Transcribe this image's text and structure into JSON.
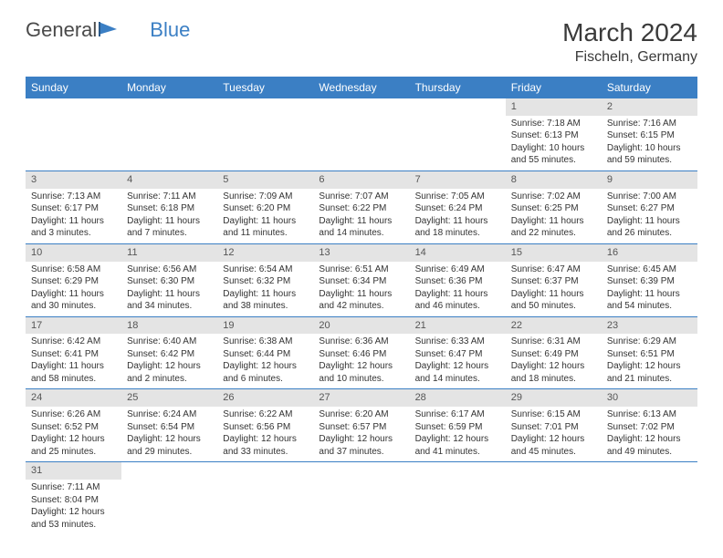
{
  "logo": {
    "text1": "General",
    "text2": "Blue"
  },
  "title": "March 2024",
  "location": "Fischeln, Germany",
  "colors": {
    "header_bg": "#3b7fc4",
    "header_text": "#ffffff",
    "daynum_bg": "#e4e4e4",
    "border": "#3b7fc4",
    "body_bg": "#ffffff",
    "text": "#333333"
  },
  "weekdays": [
    "Sunday",
    "Monday",
    "Tuesday",
    "Wednesday",
    "Thursday",
    "Friday",
    "Saturday"
  ],
  "weeks": [
    [
      null,
      null,
      null,
      null,
      null,
      {
        "n": "1",
        "sr": "Sunrise: 7:18 AM",
        "ss": "Sunset: 6:13 PM",
        "d1": "Daylight: 10 hours",
        "d2": "and 55 minutes."
      },
      {
        "n": "2",
        "sr": "Sunrise: 7:16 AM",
        "ss": "Sunset: 6:15 PM",
        "d1": "Daylight: 10 hours",
        "d2": "and 59 minutes."
      }
    ],
    [
      {
        "n": "3",
        "sr": "Sunrise: 7:13 AM",
        "ss": "Sunset: 6:17 PM",
        "d1": "Daylight: 11 hours",
        "d2": "and 3 minutes."
      },
      {
        "n": "4",
        "sr": "Sunrise: 7:11 AM",
        "ss": "Sunset: 6:18 PM",
        "d1": "Daylight: 11 hours",
        "d2": "and 7 minutes."
      },
      {
        "n": "5",
        "sr": "Sunrise: 7:09 AM",
        "ss": "Sunset: 6:20 PM",
        "d1": "Daylight: 11 hours",
        "d2": "and 11 minutes."
      },
      {
        "n": "6",
        "sr": "Sunrise: 7:07 AM",
        "ss": "Sunset: 6:22 PM",
        "d1": "Daylight: 11 hours",
        "d2": "and 14 minutes."
      },
      {
        "n": "7",
        "sr": "Sunrise: 7:05 AM",
        "ss": "Sunset: 6:24 PM",
        "d1": "Daylight: 11 hours",
        "d2": "and 18 minutes."
      },
      {
        "n": "8",
        "sr": "Sunrise: 7:02 AM",
        "ss": "Sunset: 6:25 PM",
        "d1": "Daylight: 11 hours",
        "d2": "and 22 minutes."
      },
      {
        "n": "9",
        "sr": "Sunrise: 7:00 AM",
        "ss": "Sunset: 6:27 PM",
        "d1": "Daylight: 11 hours",
        "d2": "and 26 minutes."
      }
    ],
    [
      {
        "n": "10",
        "sr": "Sunrise: 6:58 AM",
        "ss": "Sunset: 6:29 PM",
        "d1": "Daylight: 11 hours",
        "d2": "and 30 minutes."
      },
      {
        "n": "11",
        "sr": "Sunrise: 6:56 AM",
        "ss": "Sunset: 6:30 PM",
        "d1": "Daylight: 11 hours",
        "d2": "and 34 minutes."
      },
      {
        "n": "12",
        "sr": "Sunrise: 6:54 AM",
        "ss": "Sunset: 6:32 PM",
        "d1": "Daylight: 11 hours",
        "d2": "and 38 minutes."
      },
      {
        "n": "13",
        "sr": "Sunrise: 6:51 AM",
        "ss": "Sunset: 6:34 PM",
        "d1": "Daylight: 11 hours",
        "d2": "and 42 minutes."
      },
      {
        "n": "14",
        "sr": "Sunrise: 6:49 AM",
        "ss": "Sunset: 6:36 PM",
        "d1": "Daylight: 11 hours",
        "d2": "and 46 minutes."
      },
      {
        "n": "15",
        "sr": "Sunrise: 6:47 AM",
        "ss": "Sunset: 6:37 PM",
        "d1": "Daylight: 11 hours",
        "d2": "and 50 minutes."
      },
      {
        "n": "16",
        "sr": "Sunrise: 6:45 AM",
        "ss": "Sunset: 6:39 PM",
        "d1": "Daylight: 11 hours",
        "d2": "and 54 minutes."
      }
    ],
    [
      {
        "n": "17",
        "sr": "Sunrise: 6:42 AM",
        "ss": "Sunset: 6:41 PM",
        "d1": "Daylight: 11 hours",
        "d2": "and 58 minutes."
      },
      {
        "n": "18",
        "sr": "Sunrise: 6:40 AM",
        "ss": "Sunset: 6:42 PM",
        "d1": "Daylight: 12 hours",
        "d2": "and 2 minutes."
      },
      {
        "n": "19",
        "sr": "Sunrise: 6:38 AM",
        "ss": "Sunset: 6:44 PM",
        "d1": "Daylight: 12 hours",
        "d2": "and 6 minutes."
      },
      {
        "n": "20",
        "sr": "Sunrise: 6:36 AM",
        "ss": "Sunset: 6:46 PM",
        "d1": "Daylight: 12 hours",
        "d2": "and 10 minutes."
      },
      {
        "n": "21",
        "sr": "Sunrise: 6:33 AM",
        "ss": "Sunset: 6:47 PM",
        "d1": "Daylight: 12 hours",
        "d2": "and 14 minutes."
      },
      {
        "n": "22",
        "sr": "Sunrise: 6:31 AM",
        "ss": "Sunset: 6:49 PM",
        "d1": "Daylight: 12 hours",
        "d2": "and 18 minutes."
      },
      {
        "n": "23",
        "sr": "Sunrise: 6:29 AM",
        "ss": "Sunset: 6:51 PM",
        "d1": "Daylight: 12 hours",
        "d2": "and 21 minutes."
      }
    ],
    [
      {
        "n": "24",
        "sr": "Sunrise: 6:26 AM",
        "ss": "Sunset: 6:52 PM",
        "d1": "Daylight: 12 hours",
        "d2": "and 25 minutes."
      },
      {
        "n": "25",
        "sr": "Sunrise: 6:24 AM",
        "ss": "Sunset: 6:54 PM",
        "d1": "Daylight: 12 hours",
        "d2": "and 29 minutes."
      },
      {
        "n": "26",
        "sr": "Sunrise: 6:22 AM",
        "ss": "Sunset: 6:56 PM",
        "d1": "Daylight: 12 hours",
        "d2": "and 33 minutes."
      },
      {
        "n": "27",
        "sr": "Sunrise: 6:20 AM",
        "ss": "Sunset: 6:57 PM",
        "d1": "Daylight: 12 hours",
        "d2": "and 37 minutes."
      },
      {
        "n": "28",
        "sr": "Sunrise: 6:17 AM",
        "ss": "Sunset: 6:59 PM",
        "d1": "Daylight: 12 hours",
        "d2": "and 41 minutes."
      },
      {
        "n": "29",
        "sr": "Sunrise: 6:15 AM",
        "ss": "Sunset: 7:01 PM",
        "d1": "Daylight: 12 hours",
        "d2": "and 45 minutes."
      },
      {
        "n": "30",
        "sr": "Sunrise: 6:13 AM",
        "ss": "Sunset: 7:02 PM",
        "d1": "Daylight: 12 hours",
        "d2": "and 49 minutes."
      }
    ],
    [
      {
        "n": "31",
        "sr": "Sunrise: 7:11 AM",
        "ss": "Sunset: 8:04 PM",
        "d1": "Daylight: 12 hours",
        "d2": "and 53 minutes."
      },
      null,
      null,
      null,
      null,
      null,
      null
    ]
  ]
}
